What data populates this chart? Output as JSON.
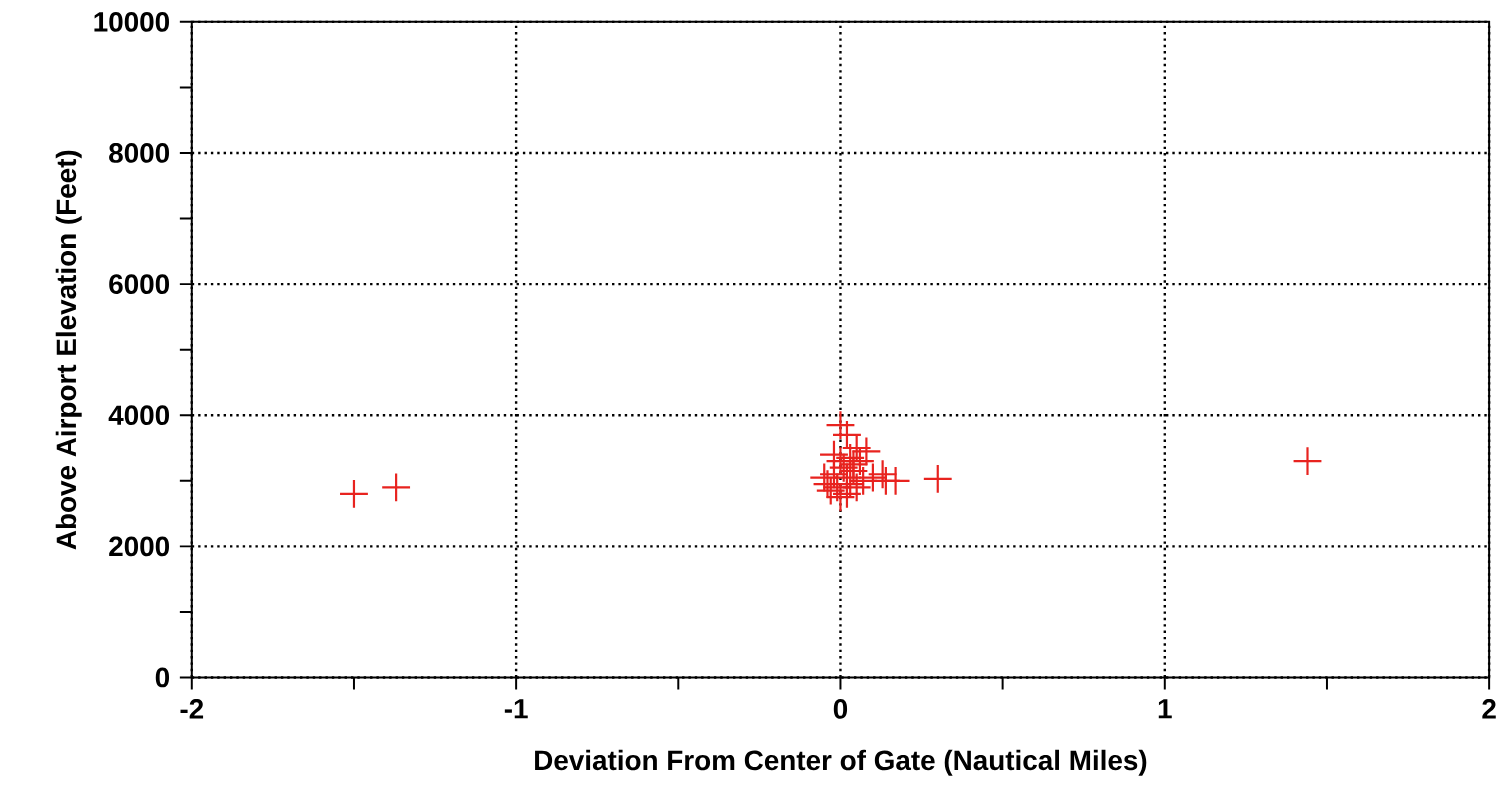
{
  "chart_data": {
    "type": "scatter",
    "xlabel": "Deviation From Center of Gate (Nautical Miles)",
    "ylabel": "Above Airport Elevation (Feet)",
    "xlim": [
      -2,
      2
    ],
    "ylim": [
      0,
      10000
    ],
    "xticks": [
      -2,
      {
        "value": -1.5,
        "label": null
      },
      -1,
      {
        "value": -0.5,
        "label": null
      },
      0,
      {
        "value": 0.5,
        "label": null
      },
      1,
      {
        "value": 1.5,
        "label": null
      },
      2
    ],
    "yticks": [
      0,
      {
        "value": 1000,
        "label": null
      },
      2000,
      {
        "value": 3000,
        "label": null
      },
      4000,
      {
        "value": 5000,
        "label": null
      },
      6000,
      {
        "value": 7000,
        "label": null
      },
      8000,
      {
        "value": 9000,
        "label": null
      },
      10000
    ],
    "grid": true,
    "marker": "cross",
    "series": [
      {
        "color": "#e8231f",
        "x": [
          -1.5,
          -1.37,
          0.3,
          1.44,
          0.0,
          0.02,
          0.05,
          0.08,
          -0.02,
          0.0,
          0.03,
          0.01,
          0.04,
          -0.05,
          -0.04,
          -0.02,
          0.02,
          0.04,
          0.07,
          -0.01,
          0.03,
          0.05,
          0.0,
          0.02,
          0.1,
          0.13,
          0.14,
          0.17,
          -0.03,
          0.06
        ],
        "values": [
          2800,
          2900,
          3030,
          3300,
          3850,
          3700,
          3500,
          3450,
          3400,
          3300,
          3350,
          3200,
          3250,
          3050,
          2950,
          3100,
          3050,
          3150,
          3000,
          2900,
          2950,
          2900,
          2750,
          2800,
          3050,
          3100,
          3000,
          3000,
          2850,
          3300
        ]
      }
    ]
  }
}
